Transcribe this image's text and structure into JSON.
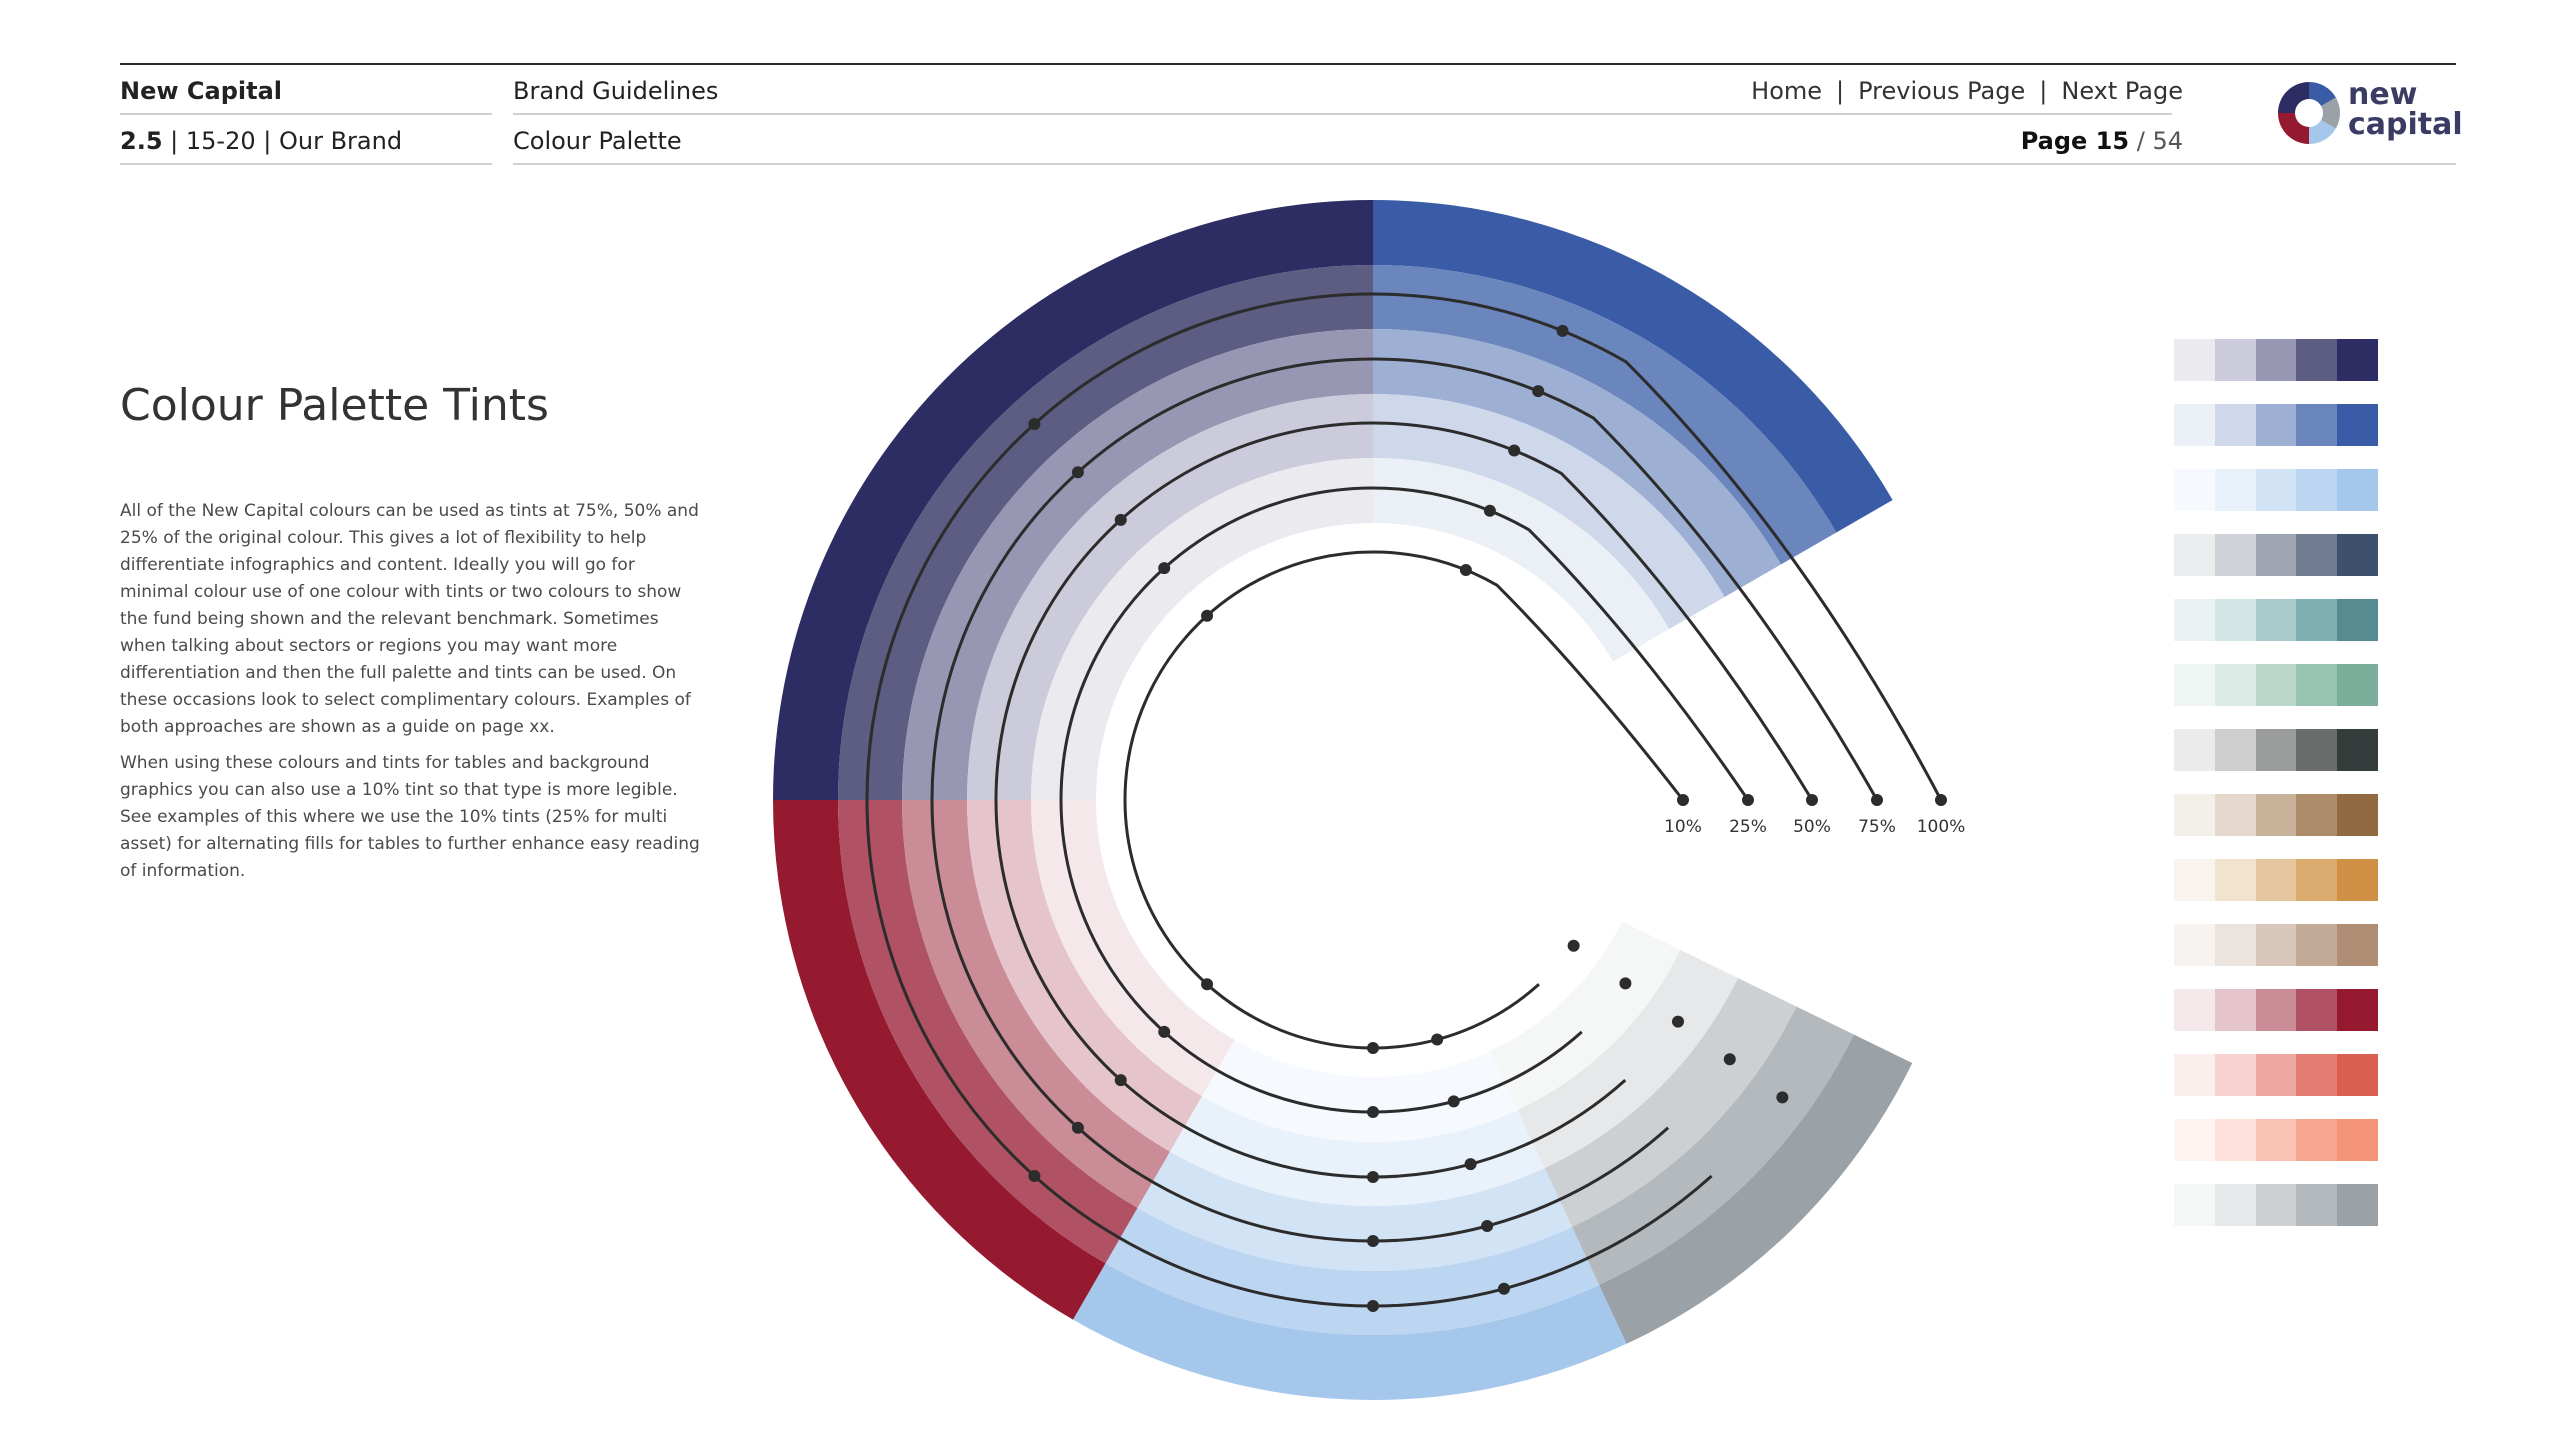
{
  "header": {
    "brand": "New Capital",
    "doc_title": "Brand Guidelines",
    "section_number": "2.5",
    "section_pages": "15-20",
    "section_name": "Our Brand",
    "page_subtitle": "Colour Palette",
    "nav": {
      "home": "Home",
      "previous": "Previous Page",
      "next": "Next Page",
      "separator": "|"
    },
    "page_label": "Page 15",
    "page_separator": "/",
    "page_total": "54",
    "logo": {
      "line1": "new",
      "line2": "capital",
      "colors": [
        "#2e2d63",
        "#3a5ca6",
        "#95192f",
        "#9aa1a7",
        "#a6c7ec"
      ]
    }
  },
  "content": {
    "title": "Colour Palette Tints",
    "paragraph1": "All of the New Capital colours can be used as tints at 75%, 50% and 25% of the original colour. This gives a lot of flexibility to help differentiate infographics and content. Ideally you will go for minimal colour use of one colour with tints or two colours to show the fund being shown and the relevant benchmark. Sometimes when talking about sectors or regions you may want more differentiation and then the full palette and tints can be used. On these occasions look to select complimentary colours. Examples of both approaches are shown as a guide on page xx.",
    "paragraph2": "When using these colours and tints for tables and background graphics you can also use a 10% tint so that type is more legible. See examples of this where we use the 10% tints (25% for multi asset) for alternating fills for tables to further enhance easy reading of information."
  },
  "wheel": {
    "tint_labels": [
      "10%",
      "25%",
      "50%",
      "75%",
      "100%"
    ],
    "segments": [
      {
        "name": "navy",
        "rings": [
          "#2e2d63",
          "#5d5c82",
          "#9897b3",
          "#cccbdb",
          "#eaeaef"
        ]
      },
      {
        "name": "blue",
        "rings": [
          "#3a5ca6",
          "#6b85bd",
          "#9db0d4",
          "#ced8ea",
          "#ebeff6"
        ]
      },
      {
        "name": "sky",
        "rings": [
          "#a6c7ec",
          "#bcd5f0",
          "#d2e3f5",
          "#e9f1fa",
          "#f6f9fd"
        ]
      },
      {
        "name": "grey",
        "rings": [
          "#9aa1a7",
          "#b3b9bd",
          "#cdd0d3",
          "#e6e8e9",
          "#f5f6f6"
        ]
      },
      {
        "name": "red",
        "rings": [
          "#95192f",
          "#b05263",
          "#ca8c97",
          "#e5c5cb",
          "#f4e8ea"
        ]
      }
    ]
  },
  "swatch_rows": [
    [
      "#eaeaef",
      "#cccbdb",
      "#9897b3",
      "#5d5c82",
      "#2e2d63"
    ],
    [
      "#ebeff6",
      "#ced8ea",
      "#9db0d4",
      "#6b85bd",
      "#3a5ca6"
    ],
    [
      "#f6f9fd",
      "#e9f1fa",
      "#d2e3f5",
      "#bcd5f0",
      "#a6c7ec"
    ],
    [
      "#ecedef",
      "#cfd3d9",
      "#9fa6b2",
      "#6e7b90",
      "#3e516c"
    ],
    [
      "#eaf2f2",
      "#d4e5e6",
      "#a9cbcc",
      "#7fb1b3",
      "#568b92"
    ],
    [
      "#eef5f2",
      "#dcebe5",
      "#b9d7cb",
      "#97c3b1",
      "#7aae9a"
    ],
    [
      "#ebebeb",
      "#cdcecd",
      "#9a9d9c",
      "#686c6b",
      "#343d3c"
    ],
    [
      "#f3f0ea",
      "#e4d9cc",
      "#c8b39a",
      "#ad8d69",
      "#916a41"
    ],
    [
      "#f9f4ee",
      "#f2e3cf",
      "#e6c79f",
      "#dbab70",
      "#cf9046"
    ],
    [
      "#f7f3f1",
      "#ebe3dd",
      "#d7c6b9",
      "#c3aa96",
      "#b08e75"
    ],
    [
      "#f4e8ea",
      "#e5c5cb",
      "#ca8c97",
      "#b05263",
      "#95192f"
    ],
    [
      "#fbefee",
      "#f6d3d0",
      "#eda8a2",
      "#e47d74",
      "#d95f50"
    ],
    [
      "#fef4f2",
      "#fde1da",
      "#fbc3b4",
      "#f8a58f",
      "#f4957a"
    ],
    [
      "#f5f6f6",
      "#e6e8e9",
      "#cdd0d3",
      "#b3b9bd",
      "#9aa1a7"
    ]
  ]
}
